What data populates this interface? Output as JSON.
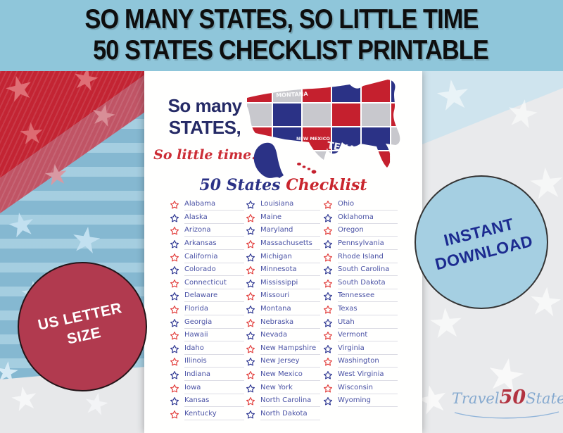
{
  "title": {
    "line1": "SO MANY STATES, SO LITTLE TIME",
    "line2": "50 STATES CHECKLIST PRINTABLE"
  },
  "paper": {
    "tagline": {
      "line1": "So many",
      "line2": "STATES,",
      "line3": "So little time."
    },
    "map_labels": [
      "MONTANA",
      "NEW MEXICO",
      "TEXAS"
    ],
    "checklist_title": {
      "part1": "50 States",
      "part2": "Checklist"
    }
  },
  "checklist": {
    "column_sizes": [
      17,
      17,
      16
    ],
    "states": [
      {
        "name": "Alabama",
        "star": "red"
      },
      {
        "name": "Alaska",
        "star": "blue"
      },
      {
        "name": "Arizona",
        "star": "red"
      },
      {
        "name": "Arkansas",
        "star": "blue"
      },
      {
        "name": "California",
        "star": "red"
      },
      {
        "name": "Colorado",
        "star": "blue"
      },
      {
        "name": "Connecticut",
        "star": "red"
      },
      {
        "name": "Delaware",
        "star": "blue"
      },
      {
        "name": "Florida",
        "star": "red"
      },
      {
        "name": "Georgia",
        "star": "blue"
      },
      {
        "name": "Hawaii",
        "star": "red"
      },
      {
        "name": "Idaho",
        "star": "blue"
      },
      {
        "name": "Illinois",
        "star": "red"
      },
      {
        "name": "Indiana",
        "star": "blue"
      },
      {
        "name": "Iowa",
        "star": "red"
      },
      {
        "name": "Kansas",
        "star": "blue"
      },
      {
        "name": "Kentucky",
        "star": "red"
      },
      {
        "name": "Louisiana",
        "star": "blue"
      },
      {
        "name": "Maine",
        "star": "red"
      },
      {
        "name": "Maryland",
        "star": "blue"
      },
      {
        "name": "Massachusetts",
        "star": "red"
      },
      {
        "name": "Michigan",
        "star": "blue"
      },
      {
        "name": "Minnesota",
        "star": "red"
      },
      {
        "name": "Mississippi",
        "star": "blue"
      },
      {
        "name": "Missouri",
        "star": "red"
      },
      {
        "name": "Montana",
        "star": "blue"
      },
      {
        "name": "Nebraska",
        "star": "red"
      },
      {
        "name": "Nevada",
        "star": "blue"
      },
      {
        "name": "New Hampshire",
        "star": "red"
      },
      {
        "name": "New Jersey",
        "star": "blue"
      },
      {
        "name": "New Mexico",
        "star": "red"
      },
      {
        "name": "New York",
        "star": "blue"
      },
      {
        "name": "North Carolina",
        "star": "red"
      },
      {
        "name": "North Dakota",
        "star": "blue"
      },
      {
        "name": "Ohio",
        "star": "red"
      },
      {
        "name": "Oklahoma",
        "star": "blue"
      },
      {
        "name": "Oregon",
        "star": "red"
      },
      {
        "name": "Pennsylvania",
        "star": "blue"
      },
      {
        "name": "Rhode Island",
        "star": "red"
      },
      {
        "name": "South Carolina",
        "star": "blue"
      },
      {
        "name": "South Dakota",
        "star": "red"
      },
      {
        "name": "Tennessee",
        "star": "blue"
      },
      {
        "name": "Texas",
        "star": "red"
      },
      {
        "name": "Utah",
        "star": "blue"
      },
      {
        "name": "Vermont",
        "star": "red"
      },
      {
        "name": "Virginia",
        "star": "blue"
      },
      {
        "name": "Washington",
        "star": "red"
      },
      {
        "name": "West Virginia",
        "star": "blue"
      },
      {
        "name": "Wisconsin",
        "star": "red"
      },
      {
        "name": "Wyoming",
        "star": "blue"
      }
    ]
  },
  "badges": {
    "us_letter": {
      "line1": "US LETTER",
      "line2": "SIZE"
    },
    "instant": {
      "line1": "INSTANT",
      "line2": "DOWNLOAD"
    }
  },
  "logo": {
    "part1": "Travel",
    "part2": "50",
    "part3": "States"
  },
  "colors": {
    "header_bg": "#8fc6da",
    "star_red": "#e23d3b",
    "star_blue": "#2c3591",
    "badge_red": "#b13a4f",
    "badge_blue": "#a5cfe2",
    "map_red": "#c5202e",
    "map_blue": "#2b3286",
    "map_silver": "#c8c8cd"
  }
}
